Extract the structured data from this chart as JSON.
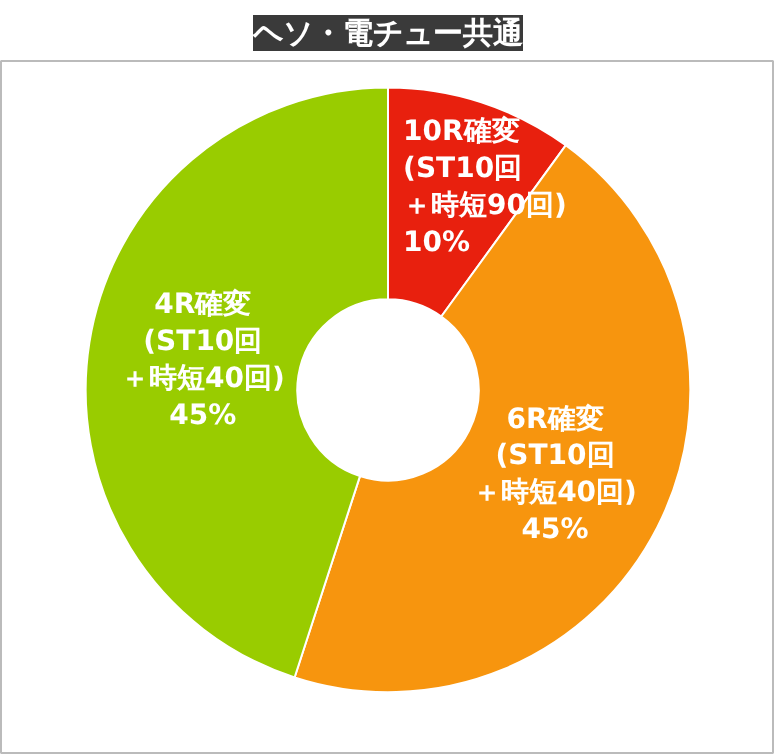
{
  "chart_data": {
    "type": "donut",
    "title": "ヘソ・電チュー共通",
    "categories": [
      "10R確変(ST10回＋時短90回)",
      "6R確変(ST10回＋時短40回)",
      "4R確変(ST10回＋時短40回)"
    ],
    "values": [
      10,
      45,
      45
    ],
    "colors": [
      "#e8200e",
      "#f7950e",
      "#99cc00"
    ],
    "value_labels": [
      "10%",
      "45%",
      "45%"
    ]
  }
}
